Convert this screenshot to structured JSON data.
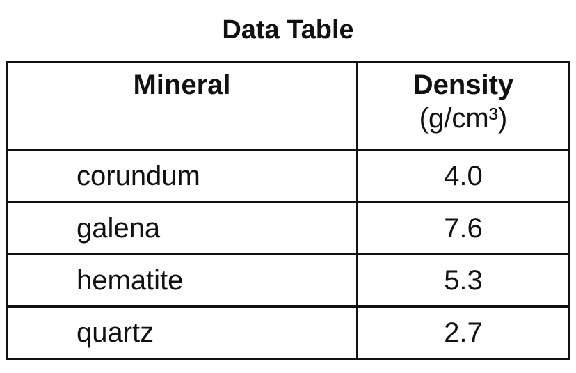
{
  "title": "Data Table",
  "table": {
    "columns": [
      {
        "label": "Mineral"
      },
      {
        "label": "Density",
        "unit": "(g/cm³)"
      }
    ],
    "rows": [
      [
        "corundum",
        "4.0"
      ],
      [
        "galena",
        "7.6"
      ],
      [
        "hematite",
        "5.3"
      ],
      [
        "quartz",
        "2.7"
      ]
    ]
  }
}
